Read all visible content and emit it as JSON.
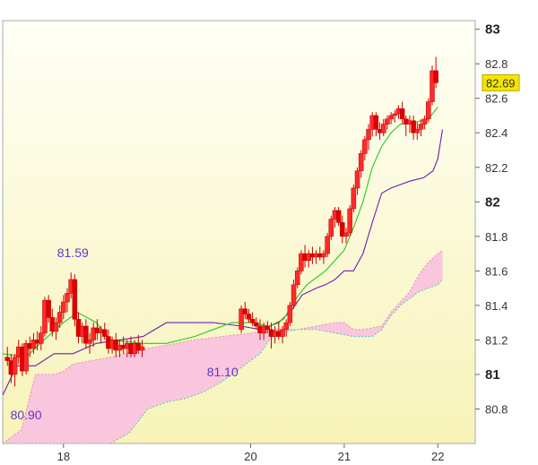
{
  "chart_data": {
    "type": "candlestick",
    "y_axis": {
      "min": 80.6,
      "max": 83.05,
      "ticks": [
        {
          "value": 83.0,
          "label": "83",
          "major": true
        },
        {
          "value": 82.8,
          "label": "82.8"
        },
        {
          "value": 82.6,
          "label": "82.6"
        },
        {
          "value": 82.4,
          "label": "82.4"
        },
        {
          "value": 82.2,
          "label": "82.2"
        },
        {
          "value": 82.0,
          "label": "82",
          "major": true
        },
        {
          "value": 81.8,
          "label": "81.8"
        },
        {
          "value": 81.6,
          "label": "81.6"
        },
        {
          "value": 81.4,
          "label": "81.4"
        },
        {
          "value": 81.2,
          "label": "81.2"
        },
        {
          "value": 81.0,
          "label": "81",
          "major": true
        },
        {
          "value": 80.8,
          "label": "80.8"
        }
      ]
    },
    "x_axis": {
      "min": 17.35,
      "max": 22.4,
      "ticks": [
        {
          "value": 18,
          "label": "18"
        },
        {
          "value": 20,
          "label": "20"
        },
        {
          "value": 21,
          "label": "21"
        },
        {
          "value": 22,
          "label": "22"
        }
      ]
    },
    "last_price": {
      "value": 82.69,
      "label": "82.69"
    },
    "annotations": [
      {
        "x": 18.1,
        "y": 81.68,
        "label": "81.59"
      },
      {
        "x": 19.7,
        "y": 80.99,
        "label": "81.10"
      },
      {
        "x": 17.6,
        "y": 80.74,
        "label": "80.90"
      }
    ],
    "candles": [
      [
        17.4,
        81.1,
        81.16,
        81.05,
        81.08
      ],
      [
        17.44,
        81.08,
        81.12,
        80.95,
        81.0
      ],
      [
        17.48,
        81.0,
        81.12,
        80.93,
        81.1
      ],
      [
        17.52,
        81.1,
        81.2,
        81.06,
        81.16
      ],
      [
        17.56,
        81.16,
        81.18,
        80.99,
        81.02
      ],
      [
        17.6,
        81.02,
        81.2,
        81.0,
        81.18
      ],
      [
        17.64,
        81.18,
        81.22,
        81.1,
        81.15
      ],
      [
        17.68,
        81.15,
        81.24,
        81.12,
        81.2
      ],
      [
        17.72,
        81.2,
        81.25,
        81.14,
        81.18
      ],
      [
        17.76,
        81.18,
        81.28,
        81.14,
        81.24
      ],
      [
        17.8,
        81.24,
        81.45,
        81.22,
        81.43
      ],
      [
        17.84,
        81.43,
        81.46,
        81.3,
        81.33
      ],
      [
        17.88,
        81.33,
        81.38,
        81.22,
        81.25
      ],
      [
        17.92,
        81.25,
        81.33,
        81.2,
        81.3
      ],
      [
        17.96,
        81.3,
        81.4,
        81.27,
        81.36
      ],
      [
        18.0,
        81.36,
        81.46,
        81.32,
        81.42
      ],
      [
        18.04,
        81.42,
        81.5,
        81.36,
        81.47
      ],
      [
        18.08,
        81.47,
        81.59,
        81.44,
        81.55
      ],
      [
        18.12,
        81.55,
        81.58,
        81.28,
        81.32
      ],
      [
        18.16,
        81.32,
        81.36,
        81.18,
        81.22
      ],
      [
        18.2,
        81.22,
        81.3,
        81.18,
        81.28
      ],
      [
        18.24,
        81.28,
        81.32,
        81.15,
        81.18
      ],
      [
        18.28,
        81.18,
        81.24,
        81.12,
        81.2
      ],
      [
        18.32,
        81.2,
        81.3,
        81.16,
        81.27
      ],
      [
        18.36,
        81.27,
        81.32,
        81.2,
        81.24
      ],
      [
        18.4,
        81.24,
        81.28,
        81.18,
        81.26
      ],
      [
        18.44,
        81.26,
        81.3,
        81.2,
        81.22
      ],
      [
        18.48,
        81.22,
        81.26,
        81.12,
        81.15
      ],
      [
        18.52,
        81.15,
        81.22,
        81.12,
        81.2
      ],
      [
        18.56,
        81.2,
        81.24,
        81.1,
        81.14
      ],
      [
        18.6,
        81.14,
        81.2,
        81.1,
        81.17
      ],
      [
        18.64,
        81.17,
        81.22,
        81.12,
        81.15
      ],
      [
        18.68,
        81.15,
        81.2,
        81.1,
        81.18
      ],
      [
        18.72,
        81.18,
        81.22,
        81.1,
        81.12
      ],
      [
        18.76,
        81.12,
        81.2,
        81.1,
        81.18
      ],
      [
        18.8,
        81.18,
        81.23,
        81.12,
        81.14
      ],
      [
        18.84,
        81.14,
        81.2,
        81.1,
        81.16
      ],
      [
        19.9,
        81.26,
        81.4,
        81.24,
        81.38
      ],
      [
        19.94,
        81.38,
        81.42,
        81.32,
        81.35
      ],
      [
        19.98,
        81.35,
        81.38,
        81.3,
        81.32
      ],
      [
        20.02,
        81.32,
        81.36,
        81.28,
        81.3
      ],
      [
        20.06,
        81.3,
        81.33,
        81.26,
        81.28
      ],
      [
        20.1,
        81.28,
        81.32,
        81.2,
        81.24
      ],
      [
        20.14,
        81.24,
        81.3,
        81.2,
        81.28
      ],
      [
        20.18,
        81.28,
        81.31,
        81.24,
        81.26
      ],
      [
        20.22,
        81.26,
        81.3,
        81.15,
        81.22
      ],
      [
        20.26,
        81.22,
        81.28,
        81.18,
        81.25
      ],
      [
        20.3,
        81.25,
        81.3,
        81.2,
        81.22
      ],
      [
        20.34,
        81.22,
        81.28,
        81.18,
        81.26
      ],
      [
        20.38,
        81.26,
        81.32,
        81.22,
        81.3
      ],
      [
        20.42,
        81.3,
        81.42,
        81.28,
        81.4
      ],
      [
        20.46,
        81.4,
        81.55,
        81.38,
        81.52
      ],
      [
        20.5,
        81.52,
        81.62,
        81.5,
        81.6
      ],
      [
        20.54,
        81.6,
        81.72,
        81.58,
        81.7
      ],
      [
        20.58,
        81.7,
        81.75,
        81.62,
        81.66
      ],
      [
        20.62,
        81.66,
        81.72,
        81.62,
        81.7
      ],
      [
        20.66,
        81.7,
        81.74,
        81.64,
        81.68
      ],
      [
        20.7,
        81.68,
        81.72,
        81.64,
        81.7
      ],
      [
        20.74,
        81.7,
        81.74,
        81.66,
        81.68
      ],
      [
        20.78,
        81.68,
        81.72,
        81.64,
        81.7
      ],
      [
        20.82,
        81.7,
        81.82,
        81.68,
        81.8
      ],
      [
        20.86,
        81.8,
        81.92,
        81.78,
        81.9
      ],
      [
        20.9,
        81.9,
        81.97,
        81.85,
        81.95
      ],
      [
        20.94,
        81.95,
        81.97,
        81.86,
        81.88
      ],
      [
        20.98,
        81.88,
        81.92,
        81.76,
        81.8
      ],
      [
        21.02,
        81.8,
        81.85,
        81.76,
        81.82
      ],
      [
        21.06,
        81.82,
        81.98,
        81.8,
        81.96
      ],
      [
        21.1,
        81.96,
        82.1,
        81.94,
        82.08
      ],
      [
        21.14,
        82.08,
        82.2,
        82.04,
        82.18
      ],
      [
        21.18,
        82.18,
        82.3,
        82.14,
        82.28
      ],
      [
        21.22,
        82.28,
        82.38,
        82.24,
        82.36
      ],
      [
        21.26,
        82.36,
        82.45,
        82.3,
        82.42
      ],
      [
        21.3,
        82.42,
        82.52,
        82.38,
        82.5
      ],
      [
        21.34,
        82.5,
        82.52,
        82.38,
        82.42
      ],
      [
        21.38,
        82.42,
        82.46,
        82.36,
        82.4
      ],
      [
        21.42,
        82.4,
        82.48,
        82.38,
        82.45
      ],
      [
        21.46,
        82.45,
        82.5,
        82.42,
        82.48
      ],
      [
        21.5,
        82.48,
        82.52,
        82.45,
        82.5
      ],
      [
        21.54,
        82.5,
        82.53,
        82.46,
        82.51
      ],
      [
        21.58,
        82.51,
        82.56,
        82.48,
        82.54
      ],
      [
        21.62,
        82.54,
        82.58,
        82.45,
        82.48
      ],
      [
        21.66,
        82.48,
        82.5,
        82.38,
        82.45
      ],
      [
        21.7,
        82.45,
        82.5,
        82.4,
        82.47
      ],
      [
        21.74,
        82.47,
        82.5,
        82.36,
        82.4
      ],
      [
        21.78,
        82.4,
        82.46,
        82.36,
        82.42
      ],
      [
        21.82,
        82.42,
        82.48,
        82.38,
        82.45
      ],
      [
        21.86,
        82.45,
        82.5,
        82.42,
        82.48
      ],
      [
        21.9,
        82.48,
        82.6,
        82.46,
        82.58
      ],
      [
        21.94,
        82.58,
        82.79,
        82.56,
        82.76
      ],
      [
        21.98,
        82.76,
        82.84,
        82.66,
        82.69
      ]
    ],
    "tenkan_line": [
      [
        17.35,
        81.12
      ],
      [
        17.6,
        81.1
      ],
      [
        17.75,
        81.18
      ],
      [
        18.0,
        81.3
      ],
      [
        18.15,
        81.36
      ],
      [
        18.35,
        81.3
      ],
      [
        18.5,
        81.2
      ],
      [
        18.85,
        81.18
      ],
      [
        19.1,
        81.18
      ],
      [
        19.4,
        81.22
      ],
      [
        19.6,
        81.26
      ],
      [
        19.8,
        81.3
      ],
      [
        20.0,
        81.3
      ],
      [
        20.2,
        81.28
      ],
      [
        20.35,
        81.32
      ],
      [
        20.5,
        81.45
      ],
      [
        20.6,
        81.52
      ],
      [
        20.8,
        81.6
      ],
      [
        21.0,
        81.72
      ],
      [
        21.1,
        81.85
      ],
      [
        21.2,
        82.0
      ],
      [
        21.3,
        82.2
      ],
      [
        21.4,
        82.32
      ],
      [
        21.5,
        82.4
      ],
      [
        21.6,
        82.45
      ],
      [
        21.75,
        82.46
      ],
      [
        21.9,
        82.48
      ],
      [
        22.0,
        82.55
      ]
    ],
    "kijun_line": [
      [
        17.35,
        80.88
      ],
      [
        17.5,
        81.05
      ],
      [
        17.7,
        81.05
      ],
      [
        17.9,
        81.12
      ],
      [
        18.1,
        81.12
      ],
      [
        18.35,
        81.18
      ],
      [
        18.6,
        81.2
      ],
      [
        18.85,
        81.22
      ],
      [
        19.1,
        81.3
      ],
      [
        19.4,
        81.3
      ],
      [
        19.6,
        81.3
      ],
      [
        19.9,
        81.28
      ],
      [
        20.1,
        81.26
      ],
      [
        20.3,
        81.3
      ],
      [
        20.45,
        81.38
      ],
      [
        20.55,
        81.46
      ],
      [
        20.7,
        81.5
      ],
      [
        20.8,
        81.52
      ],
      [
        20.9,
        81.55
      ],
      [
        21.0,
        81.6
      ],
      [
        21.1,
        81.6
      ],
      [
        21.2,
        81.7
      ],
      [
        21.3,
        81.88
      ],
      [
        21.4,
        82.05
      ],
      [
        21.5,
        82.08
      ],
      [
        21.6,
        82.1
      ],
      [
        21.7,
        82.12
      ],
      [
        21.85,
        82.14
      ],
      [
        21.95,
        82.18
      ],
      [
        22.0,
        82.25
      ],
      [
        22.05,
        82.42
      ]
    ],
    "cloud": {
      "upper": [
        [
          17.35,
          80.6
        ],
        [
          17.55,
          80.68
        ],
        [
          17.7,
          81.0
        ],
        [
          17.9,
          81.0
        ],
        [
          18.0,
          81.02
        ],
        [
          18.1,
          81.06
        ],
        [
          18.3,
          81.08
        ],
        [
          18.5,
          81.1
        ],
        [
          18.65,
          81.12
        ],
        [
          18.8,
          81.14
        ],
        [
          19.0,
          81.16
        ],
        [
          19.2,
          81.18
        ],
        [
          19.4,
          81.2
        ],
        [
          19.7,
          81.22
        ],
        [
          20.0,
          81.24
        ],
        [
          20.3,
          81.26
        ],
        [
          20.5,
          81.26
        ],
        [
          20.7,
          81.28
        ],
        [
          20.9,
          81.3
        ],
        [
          21.0,
          81.3
        ],
        [
          21.1,
          81.26
        ],
        [
          21.2,
          81.26
        ],
        [
          21.4,
          81.28
        ],
        [
          21.5,
          81.36
        ],
        [
          21.6,
          81.42
        ],
        [
          21.7,
          81.48
        ],
        [
          21.8,
          81.58
        ],
        [
          21.9,
          81.65
        ],
        [
          22.0,
          81.7
        ],
        [
          22.05,
          81.72
        ]
      ],
      "lower": [
        [
          17.35,
          80.6
        ],
        [
          18.5,
          80.6
        ],
        [
          18.7,
          80.66
        ],
        [
          18.9,
          80.8
        ],
        [
          19.1,
          80.84
        ],
        [
          19.3,
          80.86
        ],
        [
          19.5,
          80.9
        ],
        [
          19.7,
          80.96
        ],
        [
          19.9,
          81.04
        ],
        [
          20.1,
          81.12
        ],
        [
          20.2,
          81.2
        ],
        [
          20.3,
          81.24
        ],
        [
          20.5,
          81.26
        ],
        [
          20.7,
          81.26
        ],
        [
          20.9,
          81.24
        ],
        [
          21.1,
          81.22
        ],
        [
          21.3,
          81.22
        ],
        [
          21.4,
          81.26
        ],
        [
          21.5,
          81.34
        ],
        [
          21.6,
          81.4
        ],
        [
          21.7,
          81.44
        ],
        [
          21.8,
          81.48
        ],
        [
          21.9,
          81.5
        ],
        [
          22.0,
          81.52
        ],
        [
          22.05,
          81.55
        ]
      ]
    }
  }
}
